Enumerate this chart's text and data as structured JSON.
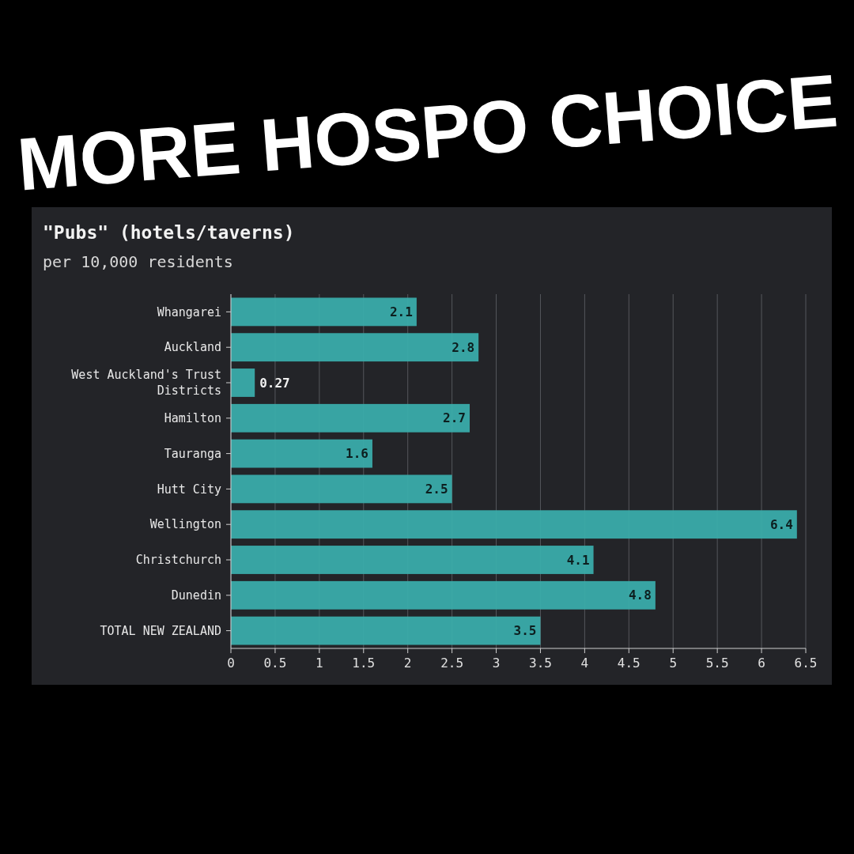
{
  "chart_data": {
    "type": "bar",
    "orientation": "horizontal",
    "title": "\"Pubs\" (hotels/taverns)",
    "subtitle": "per 10,000 residents",
    "annotations": [
      "MORE HOSPO CHOICE"
    ],
    "categories": [
      "Whangarei",
      "Auckland",
      "West Auckland's Trust Districts",
      "Hamilton",
      "Tauranga",
      "Hutt City",
      "Wellington",
      "Christchurch",
      "Dunedin",
      "TOTAL NEW ZEALAND"
    ],
    "values": [
      2.1,
      2.8,
      0.27,
      2.7,
      1.6,
      2.5,
      6.4,
      4.1,
      4.8,
      3.5
    ],
    "color": "#3aacaa",
    "xlim": [
      0,
      6.5
    ],
    "xticks": [
      0,
      0.5,
      1,
      1.5,
      2,
      2.5,
      3,
      3.5,
      4,
      4.5,
      5,
      5.5,
      6,
      6.5
    ],
    "grid": "x",
    "data_labels": true
  }
}
